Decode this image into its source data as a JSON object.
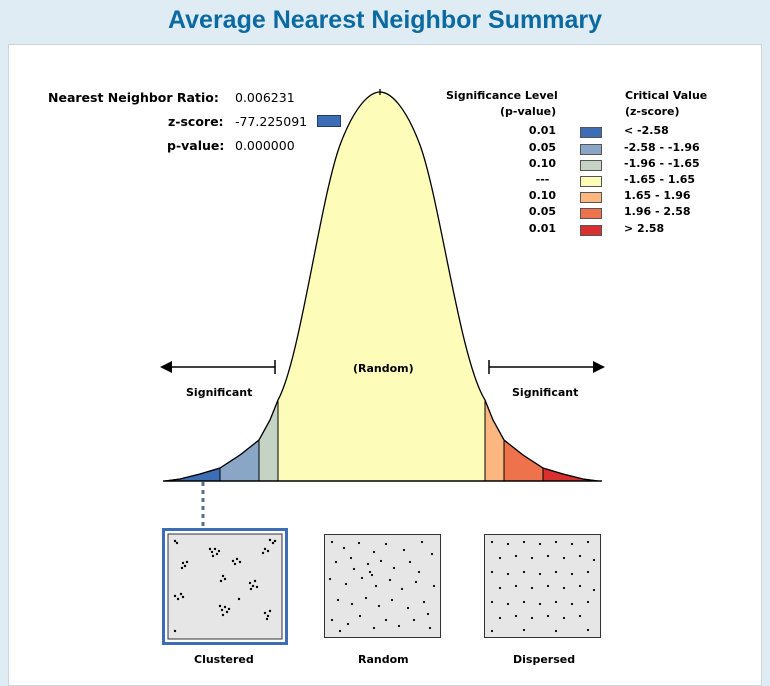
{
  "title": "Average Nearest Neighbor Summary",
  "stats": {
    "nn_ratio_label": "Nearest Neighbor Ratio:",
    "nn_ratio_value": "0.006231",
    "z_label": "z-score:",
    "z_value": "-77.225091",
    "p_label": "p-value:",
    "p_value": "0.000000"
  },
  "legend": {
    "sig_header_1": "Significance Level",
    "sig_header_2": "(p-value)",
    "crit_header_1": "Critical Value",
    "crit_header_2": "(z-score)",
    "rows": [
      {
        "p": "0.01",
        "z": "< -2.58",
        "color": "#3d6eb5"
      },
      {
        "p": "0.05",
        "z": "-2.58 - -1.96",
        "color": "#8aa6c7"
      },
      {
        "p": "0.10",
        "z": "-1.96 - -1.65",
        "color": "#c5d3c5"
      },
      {
        "p": "---",
        "z": "-1.65 - 1.65",
        "color": "#fdfdb9"
      },
      {
        "p": "0.10",
        "z": "1.65 - 1.96",
        "color": "#fbb77f"
      },
      {
        "p": "0.05",
        "z": "1.96 - 2.58",
        "color": "#ee734c"
      },
      {
        "p": "0.01",
        "z": "> 2.58",
        "color": "#d7302f"
      }
    ]
  },
  "curve": {
    "significant_left": "Significant",
    "significant_right": "Significant",
    "random_label": "(Random)"
  },
  "patterns": {
    "clustered": "Clustered",
    "random": "Random",
    "dispersed": "Dispersed"
  }
}
